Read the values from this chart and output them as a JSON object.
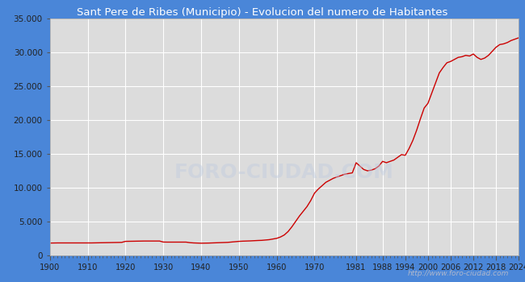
{
  "title": "Sant Pere de Ribes (Municipio) - Evolucion del numero de Habitantes",
  "title_bg_color": "#4a86d8",
  "title_text_color": "#ffffff",
  "line_color": "#cc0000",
  "plot_bg_color": "#dcdcdc",
  "fig_bg_color": "#4a86d8",
  "grid_color": "#ffffff",
  "watermark_text": "http://www.foro-ciudad.com",
  "watermark_color": "#c0cce0",
  "watermark_logo": "FORO-CIUDAD.COM",
  "ylim": [
    0,
    35000
  ],
  "ytick_values": [
    0,
    5000,
    10000,
    15000,
    20000,
    25000,
    30000,
    35000
  ],
  "ytick_labels": [
    "0",
    "5.000",
    "10.000",
    "15.000",
    "20.000",
    "25.000",
    "30.000",
    "35.000"
  ],
  "xtick_years": [
    1900,
    1910,
    1920,
    1930,
    1940,
    1950,
    1960,
    1970,
    1981,
    1988,
    1994,
    2000,
    2006,
    2012,
    2018,
    2024
  ],
  "data": [
    [
      1900,
      1800
    ],
    [
      1901,
      1810
    ],
    [
      1902,
      1820
    ],
    [
      1903,
      1820
    ],
    [
      1904,
      1820
    ],
    [
      1905,
      1820
    ],
    [
      1906,
      1820
    ],
    [
      1907,
      1820
    ],
    [
      1908,
      1820
    ],
    [
      1909,
      1820
    ],
    [
      1910,
      1820
    ],
    [
      1911,
      1820
    ],
    [
      1912,
      1830
    ],
    [
      1913,
      1840
    ],
    [
      1914,
      1850
    ],
    [
      1915,
      1860
    ],
    [
      1916,
      1870
    ],
    [
      1917,
      1880
    ],
    [
      1918,
      1890
    ],
    [
      1919,
      1900
    ],
    [
      1920,
      2050
    ],
    [
      1921,
      2060
    ],
    [
      1922,
      2070
    ],
    [
      1923,
      2080
    ],
    [
      1924,
      2090
    ],
    [
      1925,
      2100
    ],
    [
      1926,
      2100
    ],
    [
      1927,
      2100
    ],
    [
      1928,
      2100
    ],
    [
      1929,
      2100
    ],
    [
      1930,
      1950
    ],
    [
      1931,
      1940
    ],
    [
      1932,
      1940
    ],
    [
      1933,
      1940
    ],
    [
      1934,
      1940
    ],
    [
      1935,
      1940
    ],
    [
      1936,
      1940
    ],
    [
      1937,
      1860
    ],
    [
      1938,
      1820
    ],
    [
      1939,
      1800
    ],
    [
      1940,
      1780
    ],
    [
      1941,
      1790
    ],
    [
      1942,
      1800
    ],
    [
      1943,
      1820
    ],
    [
      1944,
      1840
    ],
    [
      1945,
      1860
    ],
    [
      1946,
      1880
    ],
    [
      1947,
      1900
    ],
    [
      1948,
      1950
    ],
    [
      1949,
      2000
    ],
    [
      1950,
      2050
    ],
    [
      1951,
      2080
    ],
    [
      1952,
      2100
    ],
    [
      1953,
      2120
    ],
    [
      1954,
      2150
    ],
    [
      1955,
      2180
    ],
    [
      1956,
      2200
    ],
    [
      1957,
      2250
    ],
    [
      1958,
      2300
    ],
    [
      1959,
      2400
    ],
    [
      1960,
      2500
    ],
    [
      1961,
      2700
    ],
    [
      1962,
      3000
    ],
    [
      1963,
      3500
    ],
    [
      1964,
      4200
    ],
    [
      1965,
      5000
    ],
    [
      1966,
      5800
    ],
    [
      1967,
      6500
    ],
    [
      1968,
      7200
    ],
    [
      1969,
      8100
    ],
    [
      1970,
      9200
    ],
    [
      1971,
      9800
    ],
    [
      1972,
      10300
    ],
    [
      1973,
      10800
    ],
    [
      1974,
      11100
    ],
    [
      1975,
      11400
    ],
    [
      1976,
      11600
    ],
    [
      1977,
      11800
    ],
    [
      1978,
      12000
    ],
    [
      1979,
      12100
    ],
    [
      1980,
      12200
    ],
    [
      1981,
      13700
    ],
    [
      1982,
      13200
    ],
    [
      1983,
      12700
    ],
    [
      1984,
      12500
    ],
    [
      1985,
      12600
    ],
    [
      1986,
      12800
    ],
    [
      1987,
      13200
    ],
    [
      1988,
      13900
    ],
    [
      1989,
      13700
    ],
    [
      1990,
      13900
    ],
    [
      1991,
      14100
    ],
    [
      1992,
      14500
    ],
    [
      1993,
      14900
    ],
    [
      1994,
      14800
    ],
    [
      1995,
      15800
    ],
    [
      1996,
      17000
    ],
    [
      1997,
      18500
    ],
    [
      1998,
      20200
    ],
    [
      1999,
      21800
    ],
    [
      2000,
      22500
    ],
    [
      2001,
      24000
    ],
    [
      2002,
      25500
    ],
    [
      2003,
      27000
    ],
    [
      2004,
      27800
    ],
    [
      2005,
      28500
    ],
    [
      2006,
      28700
    ],
    [
      2007,
      29000
    ],
    [
      2008,
      29300
    ],
    [
      2009,
      29400
    ],
    [
      2010,
      29600
    ],
    [
      2011,
      29500
    ],
    [
      2012,
      29800
    ],
    [
      2013,
      29300
    ],
    [
      2014,
      29000
    ],
    [
      2015,
      29200
    ],
    [
      2016,
      29600
    ],
    [
      2017,
      30200
    ],
    [
      2018,
      30800
    ],
    [
      2019,
      31200
    ],
    [
      2020,
      31300
    ],
    [
      2021,
      31500
    ],
    [
      2022,
      31800
    ],
    [
      2023,
      32000
    ],
    [
      2024,
      32200
    ]
  ]
}
